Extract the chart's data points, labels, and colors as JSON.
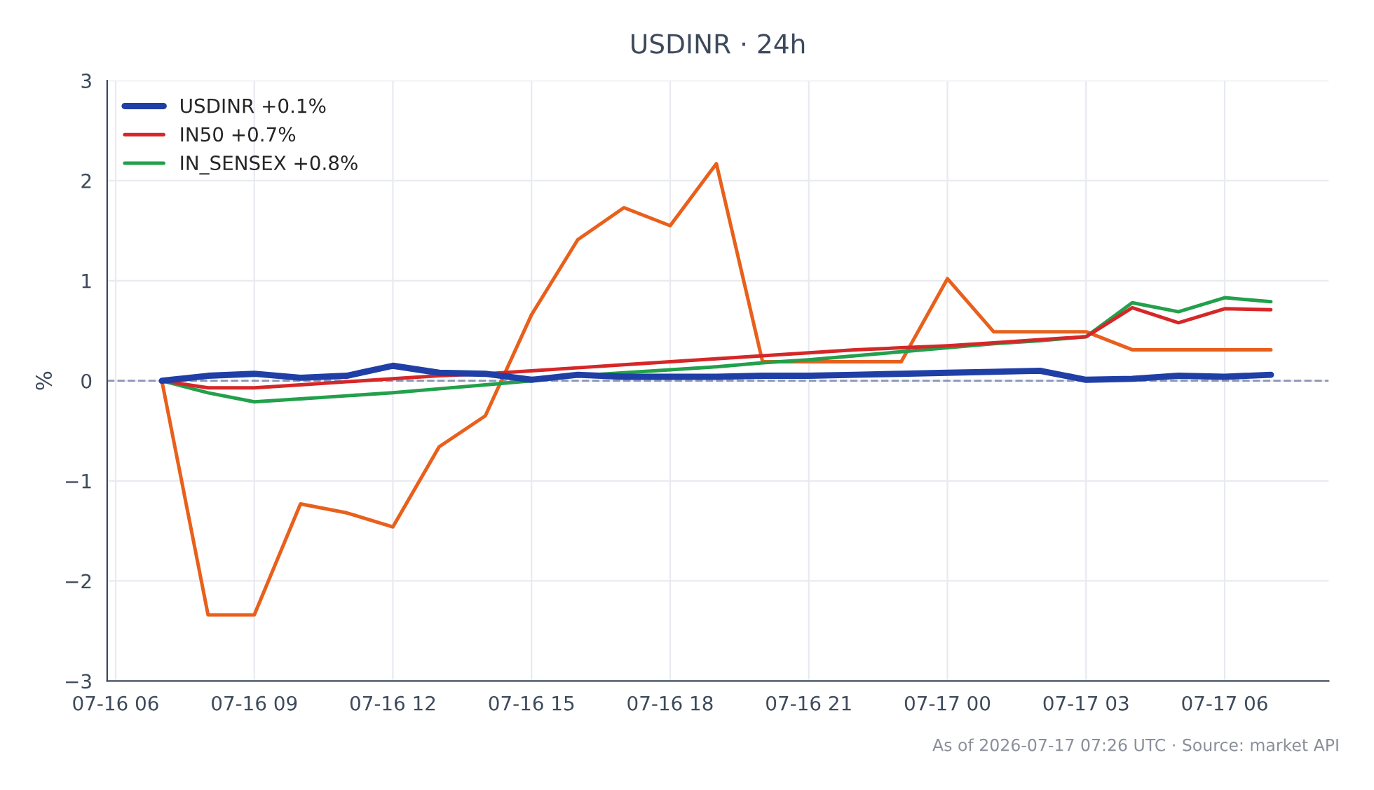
{
  "chart_data": {
    "type": "line",
    "title": "USDINR · 24h",
    "ylabel": "%",
    "x": [
      "2026-07-16T07:00",
      "2026-07-16T08:00",
      "2026-07-16T09:00",
      "2026-07-16T10:00",
      "2026-07-16T11:00",
      "2026-07-16T12:00",
      "2026-07-16T13:00",
      "2026-07-16T14:00",
      "2026-07-16T15:00",
      "2026-07-16T16:00",
      "2026-07-16T17:00",
      "2026-07-16T18:00",
      "2026-07-16T19:00",
      "2026-07-16T20:00",
      "2026-07-16T21:00",
      "2026-07-16T22:00",
      "2026-07-16T23:00",
      "2026-07-17T00:00",
      "2026-07-17T01:00",
      "2026-07-17T02:00",
      "2026-07-17T03:00",
      "2026-07-17T04:00",
      "2026-07-17T05:00",
      "2026-07-17T06:00",
      "2026-07-17T07:00"
    ],
    "series": [
      {
        "name": "USDINR +0.1%",
        "color": "#1f3fa6",
        "values": [
          0,
          0.05,
          0.07,
          0.03,
          0.05,
          0.15,
          0.08,
          0.07,
          0.01,
          0.06,
          0.04,
          0.04,
          0.04,
          0.05,
          0.05,
          0.06,
          0.07,
          0.08,
          0.09,
          0.1,
          0.01,
          0.02,
          0.05,
          0.04,
          0.06
        ]
      },
      {
        "name": "IN50 +0.7%",
        "color": "#d62728",
        "values": [
          0,
          -0.07,
          -0.07,
          -0.04,
          -0.01,
          0.02,
          0.05,
          0.07,
          0.1,
          0.13,
          0.16,
          0.19,
          0.22,
          0.25,
          0.28,
          0.31,
          0.33,
          0.35,
          0.38,
          0.41,
          0.44,
          0.73,
          0.58,
          0.72,
          0.71
        ]
      },
      {
        "name": "IN_SENSEX +0.8%",
        "color": "#22a04b",
        "values": [
          0,
          -0.12,
          -0.21,
          -0.18,
          -0.15,
          -0.12,
          -0.08,
          -0.04,
          0.0,
          0.05,
          0.08,
          0.11,
          0.14,
          0.18,
          0.21,
          0.25,
          0.29,
          0.33,
          0.37,
          0.4,
          0.44,
          0.78,
          0.69,
          0.83,
          0.79
        ]
      },
      {
        "color": "#e8601c",
        "values": [
          0,
          -2.34,
          -2.34,
          -1.23,
          -1.32,
          -1.46,
          -0.66,
          -0.35,
          0.66,
          1.41,
          1.73,
          1.55,
          2.17,
          0.19,
          0.19,
          0.19,
          0.19,
          1.02,
          0.49,
          0.49,
          0.49,
          0.31,
          0.31,
          0.31,
          0.31
        ]
      }
    ],
    "xlim": [
      "2026-07-16T05:49",
      "2026-07-17T08:15"
    ],
    "xticks": [
      {
        "value": "2026-07-16T06:00",
        "label": "07-16 06"
      },
      {
        "value": "2026-07-16T09:00",
        "label": "07-16 09"
      },
      {
        "value": "2026-07-16T12:00",
        "label": "07-16 12"
      },
      {
        "value": "2026-07-16T15:00",
        "label": "07-16 15"
      },
      {
        "value": "2026-07-16T18:00",
        "label": "07-16 18"
      },
      {
        "value": "2026-07-16T21:00",
        "label": "07-16 21"
      },
      {
        "value": "2026-07-17T00:00",
        "label": "07-17 00"
      },
      {
        "value": "2026-07-17T03:00",
        "label": "07-17 03"
      },
      {
        "value": "2026-07-17T06:00",
        "label": "07-17 06"
      }
    ],
    "ylim": [
      -3,
      3
    ],
    "yticks": [
      {
        "value": -3,
        "label": "−3"
      },
      {
        "value": -2,
        "label": "−2"
      },
      {
        "value": -1,
        "label": "−1"
      },
      0,
      1,
      2,
      3
    ],
    "ref_lines": [
      {
        "axis": "y",
        "value": 0,
        "color": "#8a96b8",
        "line_style": "dashed"
      }
    ],
    "grid": true,
    "legend": "top left",
    "line_style": "solid",
    "marker": "none",
    "annotations": [
      "As of 2026-07-17 07:26 UTC · Source: market API"
    ]
  }
}
